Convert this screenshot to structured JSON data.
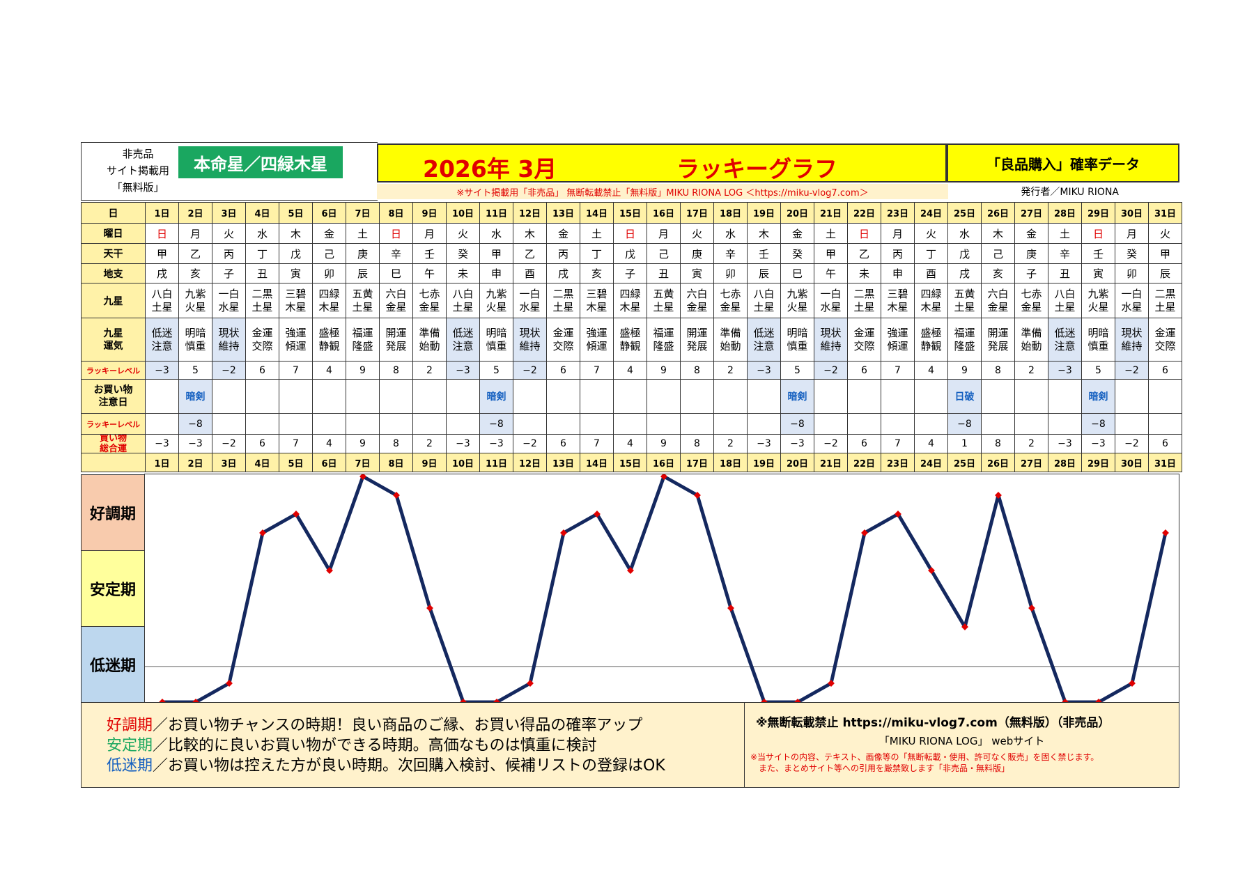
{
  "header": {
    "top_left_lines": [
      "非売品",
      "サイト掲載用",
      "「無料版」"
    ],
    "honmei": "本命星／四緑木星",
    "year_month": "2026年 3月",
    "graph_title": "ラッキーグラフ",
    "data_title": "「良品購入」確率データ",
    "notice": "※サイト掲載用「非売品」 無断転載禁止「無料版」MIKU RIONA LOG ＜https://miku-vlog7.com＞",
    "publisher": "発行者／MIKU RIONA"
  },
  "row_labels": {
    "day": "日",
    "weekday": "曜日",
    "tenkan": "天干",
    "chishi": "地支",
    "kyusei": "九星",
    "kyusei_unki": [
      "九星",
      "運気"
    ],
    "lucky_level": "ラッキーレベル",
    "shopping_caution": [
      "お買い物",
      "注意日"
    ],
    "lucky_level2": "ラッキーレベル",
    "shopping_total": [
      "買い物",
      "総合運"
    ]
  },
  "days": [
    "1日",
    "2日",
    "3日",
    "4日",
    "5日",
    "6日",
    "7日",
    "8日",
    "9日",
    "10日",
    "11日",
    "12日",
    "13日",
    "14日",
    "15日",
    "16日",
    "17日",
    "18日",
    "19日",
    "20日",
    "21日",
    "22日",
    "23日",
    "24日",
    "25日",
    "26日",
    "27日",
    "28日",
    "29日",
    "30日",
    "31日"
  ],
  "weekdays": [
    "日",
    "月",
    "火",
    "水",
    "木",
    "金",
    "土",
    "日",
    "月",
    "火",
    "水",
    "木",
    "金",
    "土",
    "日",
    "月",
    "火",
    "水",
    "木",
    "金",
    "土",
    "日",
    "月",
    "火",
    "水",
    "木",
    "金",
    "土",
    "日",
    "月",
    "火"
  ],
  "tenkan": [
    "甲",
    "乙",
    "丙",
    "丁",
    "戊",
    "己",
    "庚",
    "辛",
    "壬",
    "癸",
    "甲",
    "乙",
    "丙",
    "丁",
    "戊",
    "己",
    "庚",
    "辛",
    "壬",
    "癸",
    "甲",
    "乙",
    "丙",
    "丁",
    "戊",
    "己",
    "庚",
    "辛",
    "壬",
    "癸",
    "甲"
  ],
  "chishi": [
    "戌",
    "亥",
    "子",
    "丑",
    "寅",
    "卯",
    "辰",
    "巳",
    "午",
    "未",
    "申",
    "酉",
    "戌",
    "亥",
    "子",
    "丑",
    "寅",
    "卯",
    "辰",
    "巳",
    "午",
    "未",
    "申",
    "酉",
    "戌",
    "亥",
    "子",
    "丑",
    "寅",
    "卯",
    "辰"
  ],
  "kyusei": [
    [
      "八白",
      "土星"
    ],
    [
      "九紫",
      "火星"
    ],
    [
      "一白",
      "水星"
    ],
    [
      "二黒",
      "土星"
    ],
    [
      "三碧",
      "木星"
    ],
    [
      "四緑",
      "木星"
    ],
    [
      "五黄",
      "土星"
    ],
    [
      "六白",
      "金星"
    ],
    [
      "七赤",
      "金星"
    ],
    [
      "八白",
      "土星"
    ],
    [
      "九紫",
      "火星"
    ],
    [
      "一白",
      "水星"
    ],
    [
      "二黒",
      "土星"
    ],
    [
      "三碧",
      "木星"
    ],
    [
      "四緑",
      "木星"
    ],
    [
      "五黄",
      "土星"
    ],
    [
      "六白",
      "金星"
    ],
    [
      "七赤",
      "金星"
    ],
    [
      "八白",
      "土星"
    ],
    [
      "九紫",
      "火星"
    ],
    [
      "一白",
      "水星"
    ],
    [
      "二黒",
      "土星"
    ],
    [
      "三碧",
      "木星"
    ],
    [
      "四緑",
      "木星"
    ],
    [
      "五黄",
      "土星"
    ],
    [
      "六白",
      "金星"
    ],
    [
      "七赤",
      "金星"
    ],
    [
      "八白",
      "土星"
    ],
    [
      "九紫",
      "火星"
    ],
    [
      "一白",
      "水星"
    ],
    [
      "二黒",
      "土星"
    ]
  ],
  "unki": [
    [
      "低迷",
      "注意"
    ],
    [
      "明暗",
      "慎重"
    ],
    [
      "現状",
      "維持"
    ],
    [
      "金運",
      "交際"
    ],
    [
      "強運",
      "傾運"
    ],
    [
      "盛極",
      "静観"
    ],
    [
      "福運",
      "隆盛"
    ],
    [
      "開運",
      "発展"
    ],
    [
      "準備",
      "始動"
    ],
    [
      "低迷",
      "注意"
    ],
    [
      "明暗",
      "慎重"
    ],
    [
      "現状",
      "維持"
    ],
    [
      "金運",
      "交際"
    ],
    [
      "強運",
      "傾運"
    ],
    [
      "盛極",
      "静観"
    ],
    [
      "福運",
      "隆盛"
    ],
    [
      "開運",
      "発展"
    ],
    [
      "準備",
      "始動"
    ],
    [
      "低迷",
      "注意"
    ],
    [
      "明暗",
      "慎重"
    ],
    [
      "現状",
      "維持"
    ],
    [
      "金運",
      "交際"
    ],
    [
      "強運",
      "傾運"
    ],
    [
      "盛極",
      "静観"
    ],
    [
      "福運",
      "隆盛"
    ],
    [
      "開運",
      "発展"
    ],
    [
      "準備",
      "始動"
    ],
    [
      "低迷",
      "注意"
    ],
    [
      "明暗",
      "慎重"
    ],
    [
      "現状",
      "維持"
    ],
    [
      "金運",
      "交際"
    ]
  ],
  "lucky_level": [
    "−3",
    "5",
    "−2",
    "6",
    "7",
    "4",
    "9",
    "8",
    "2",
    "−3",
    "5",
    "−2",
    "6",
    "7",
    "4",
    "9",
    "8",
    "2",
    "−3",
    "5",
    "−2",
    "6",
    "7",
    "4",
    "9",
    "8",
    "2",
    "−3",
    "5",
    "−2",
    "6"
  ],
  "caution": [
    "",
    "暗剣",
    "",
    "",
    "",
    "",
    "",
    "",
    "",
    "",
    "暗剣",
    "",
    "",
    "",
    "",
    "",
    "",
    "",
    "",
    "暗剣",
    "",
    "",
    "",
    "",
    "日破",
    "",
    "",
    "",
    "暗剣",
    "",
    ""
  ],
  "caution_level": [
    "",
    "−8",
    "",
    "",
    "",
    "",
    "",
    "",
    "",
    "",
    "−8",
    "",
    "",
    "",
    "",
    "",
    "",
    "",
    "",
    "−8",
    "",
    "",
    "",
    "",
    "−8",
    "",
    "",
    "",
    "−8",
    "",
    ""
  ],
  "total": [
    "−3",
    "−3",
    "−2",
    "6",
    "7",
    "4",
    "9",
    "8",
    "2",
    "−3",
    "−3",
    "−2",
    "6",
    "7",
    "4",
    "9",
    "8",
    "2",
    "−3",
    "−3",
    "−2",
    "6",
    "7",
    "4",
    "1",
    "8",
    "2",
    "−3",
    "−3",
    "−2",
    "6"
  ],
  "bands": [
    "好調期",
    "安定期",
    "低迷期"
  ],
  "chart_data": {
    "type": "line",
    "x": [
      1,
      2,
      3,
      4,
      5,
      6,
      7,
      8,
      9,
      10,
      11,
      12,
      13,
      14,
      15,
      16,
      17,
      18,
      19,
      20,
      21,
      22,
      23,
      24,
      25,
      26,
      27,
      28,
      29,
      30,
      31
    ],
    "series": [
      {
        "values": [
          -3,
          -3,
          -2,
          6,
          7,
          4,
          9,
          8,
          2,
          -3,
          -3,
          -2,
          6,
          7,
          4,
          9,
          8,
          2,
          -3,
          -3,
          -2,
          6,
          7,
          4,
          1,
          8,
          2,
          -3,
          -3,
          -2,
          6
        ]
      }
    ],
    "ylim": [
      -3,
      9
    ],
    "colors": {
      "line": "#14285f",
      "marker": "#e00000",
      "reference_line": "#999999"
    }
  },
  "legend": {
    "good_label": "好調期",
    "good_text": "／お買い物チャンスの時期！良い商品のご縁、お買い得品の確率アップ",
    "stable_label": "安定期",
    "stable_text": "／比較的に良いお買い物ができる時期。高価なものは慎重に検討",
    "low_label": "低迷期",
    "low_text": "／お買い物は控えた方が良い時期。次回購入検討、候補リストの登録はOK"
  },
  "copyright": {
    "line1": "※無断転載禁止 https://miku-vlog7.com（無料版）（非売品）",
    "line2": "「MIKU RIONA LOG」 webサイト",
    "line3": "※当サイトの内容、テキスト、画像等の「無断転載・使用、許可なく販売」を固く禁じます。",
    "line4": "また、まとめサイト等への引用を厳禁致します「非売品・無料版」"
  },
  "colors": {
    "header_yellow": "#ffff00",
    "row_header_bg": "#fff2a8",
    "honmei_green": "#1aa760",
    "title_red": "#e00000",
    "band_good": "#f8cbad",
    "band_stable": "#ffff9c",
    "band_low": "#bdd7ee",
    "highlight_blue": "#dce6f5"
  }
}
